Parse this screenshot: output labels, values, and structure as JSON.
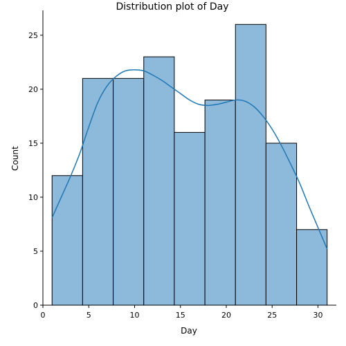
{
  "chart_data": {
    "type": "bar",
    "title": "Distribution plot of Day",
    "xlabel": "Day",
    "ylabel": "Count",
    "bin_edges": [
      1,
      4.33,
      7.67,
      11,
      14.33,
      17.67,
      21,
      24.33,
      27.67,
      31
    ],
    "values": [
      12,
      21,
      21,
      23,
      16,
      19,
      26,
      15,
      7
    ],
    "kde": {
      "x": [
        1,
        2,
        3,
        4,
        5,
        6,
        7,
        8,
        9,
        10,
        11,
        12,
        13,
        14,
        15,
        16,
        17,
        18,
        19,
        20,
        21,
        22,
        23,
        24,
        25,
        26,
        27,
        28,
        29,
        30,
        31
      ],
      "y": [
        8.1,
        10.0,
        11.9,
        14.0,
        16.5,
        18.8,
        20.3,
        21.2,
        21.7,
        21.8,
        21.7,
        21.3,
        20.8,
        20.2,
        19.6,
        19.0,
        18.6,
        18.5,
        18.6,
        18.8,
        19.0,
        18.9,
        18.4,
        17.5,
        16.3,
        14.8,
        13.1,
        11.3,
        9.2,
        7.2,
        5.2
      ]
    },
    "xlim": [
      0,
      32
    ],
    "ylim": [
      0,
      27.3
    ],
    "xticks": [
      0,
      5,
      10,
      15,
      20,
      25,
      30
    ],
    "yticks": [
      0,
      5,
      10,
      15,
      20,
      25
    ],
    "bar_color": "#8db9db",
    "bar_edge_color": "#000000",
    "line_color": "#1f77b4",
    "grid": false
  }
}
